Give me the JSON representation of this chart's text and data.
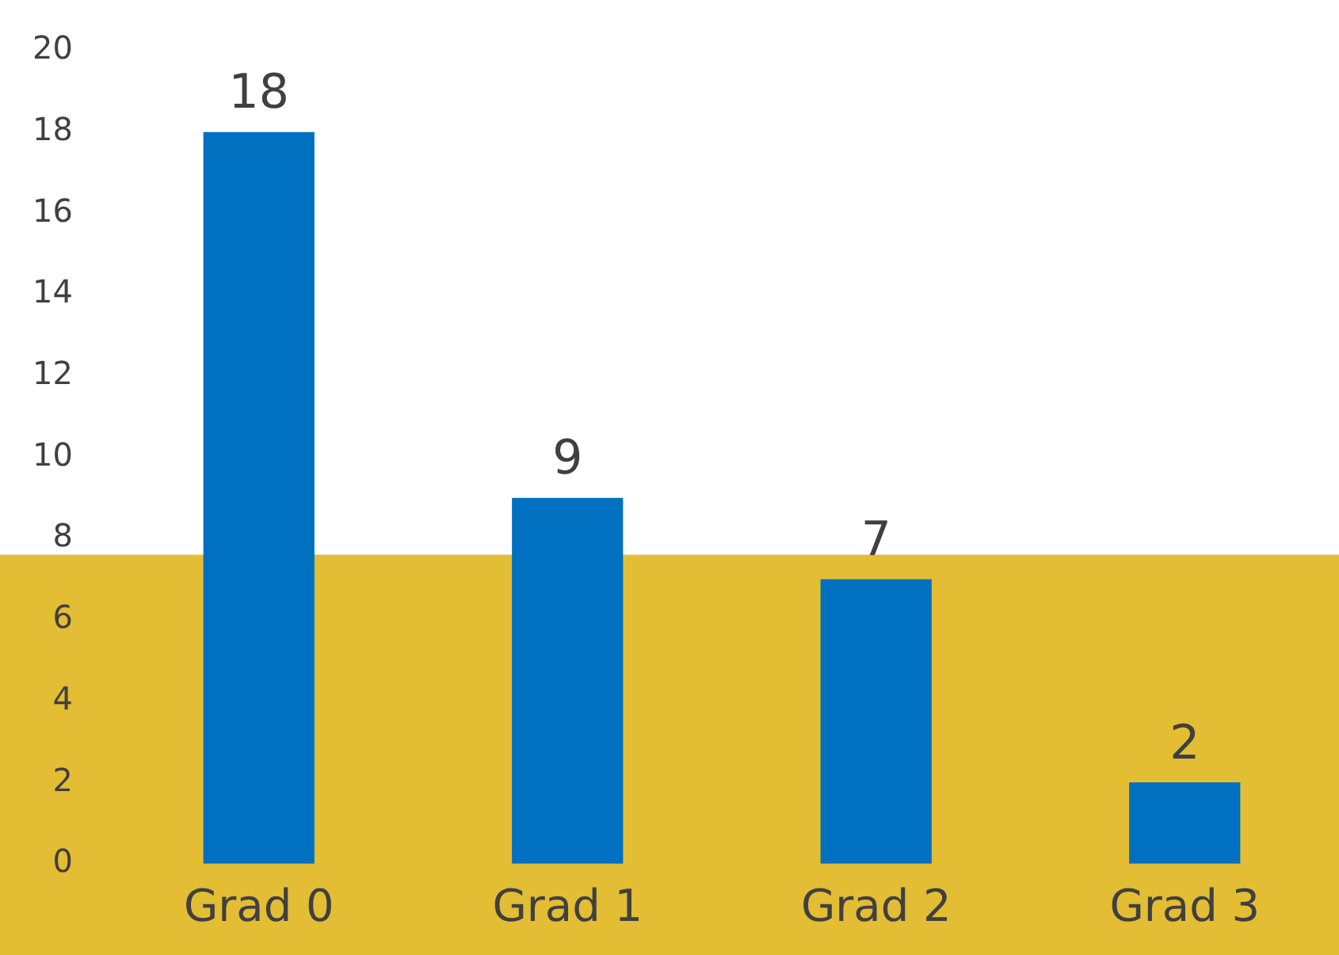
{
  "chart_data": {
    "type": "bar",
    "categories": [
      "Grad 0",
      "Grad 1",
      "Grad 2",
      "Grad 3"
    ],
    "values": [
      18,
      9,
      7,
      2
    ],
    "color": "#0070c0",
    "ylim": [
      0,
      20
    ],
    "yticks": [
      0,
      2,
      4,
      6,
      8,
      10,
      12,
      14,
      16,
      18,
      20
    ],
    "grid": false,
    "legend": false,
    "data_labels": true,
    "bands": [
      {
        "axis": "y",
        "from": 0,
        "to": 7.6,
        "color": "#e3bd33"
      }
    ]
  }
}
